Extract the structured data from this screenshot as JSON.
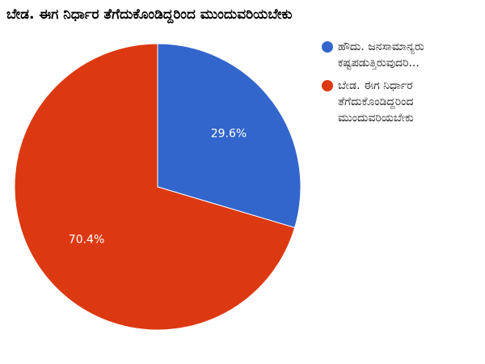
{
  "chart_data": {
    "type": "pie",
    "title": "ಬೇಡ. ಈಗ ನಿರ್ಧಾರ ತೆಗೆದುಕೊಂಡಿದ್ದರಿಂದ ಮುಂದುವರಿಯಬೇಕು",
    "categories": [
      "ಹೌದು. ಜನಸಾಮಾನ್ಯರು ಕಷ್ಟಪಡುತ್ತಿರುವುದರಿ...",
      "ಬೇಡ. ಈಗ ನಿರ್ಧಾರ ತೆಗೆದುಕೊಂಡಿದ್ದರಿಂದ ಮುಂದುವರಿಯಬೇಕು"
    ],
    "values": [
      29.6,
      70.4
    ],
    "value_labels": [
      "29.6%",
      "70.4%"
    ],
    "colors": [
      "#3366cc",
      "#dc3912"
    ],
    "legend": "right"
  }
}
